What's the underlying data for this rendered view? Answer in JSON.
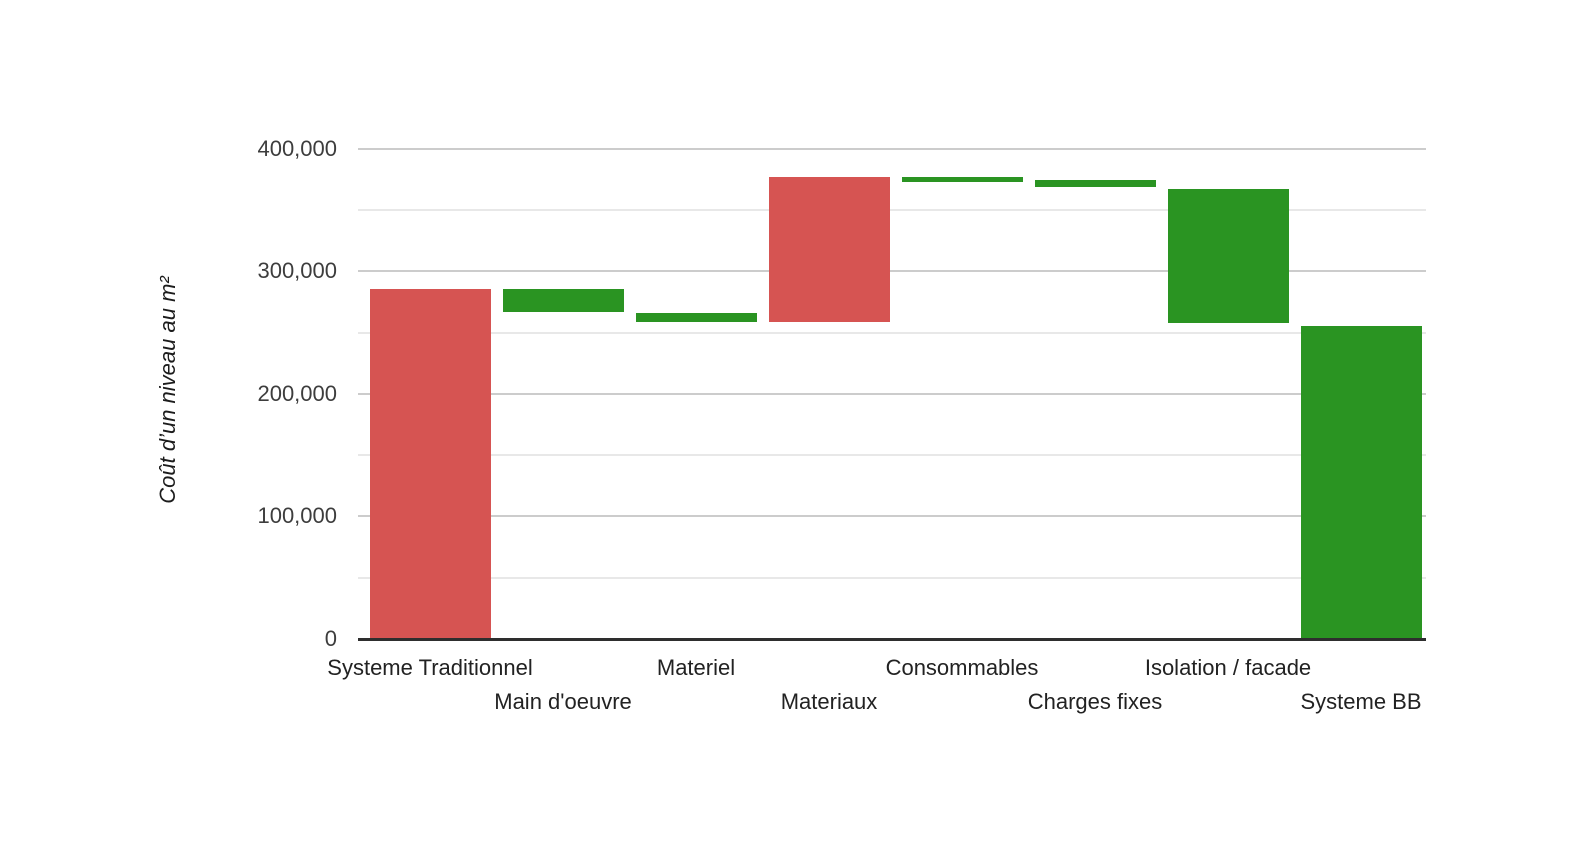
{
  "chart_data": {
    "type": "bar",
    "subtype": "waterfall",
    "title": "",
    "xlabel": "",
    "ylabel": "Coût d’un niveau au m²",
    "ylim": [
      0,
      400000
    ],
    "grid": true,
    "legend_position": "none",
    "categories": [
      "Systeme Traditionnel",
      "Main d'oeuvre",
      "Materiel",
      "Materiaux",
      "Consommables",
      "Charges fixes",
      "Isolation / facade",
      "Systeme BB"
    ],
    "bars": [
      {
        "category": "Systeme Traditionnel",
        "from": 0,
        "to": 285500,
        "color": "#d65452"
      },
      {
        "category": "Main d'oeuvre",
        "from": 285500,
        "to": 267000,
        "color": "#2a9422"
      },
      {
        "category": "Materiel",
        "from": 265500,
        "to": 258500,
        "color": "#2a9422"
      },
      {
        "category": "Materiaux",
        "from": 258500,
        "to": 376500,
        "color": "#d65452"
      },
      {
        "category": "Consommables",
        "from": 376500,
        "to": 372500,
        "color": "#2a9422"
      },
      {
        "category": "Charges fixes",
        "from": 374500,
        "to": 368500,
        "color": "#2a9422"
      },
      {
        "category": "Isolation / facade",
        "from": 367000,
        "to": 257500,
        "color": "#2a9422"
      },
      {
        "category": "Systeme BB",
        "from": 0,
        "to": 255500,
        "color": "#2a9422"
      }
    ],
    "yticks": [
      {
        "value": 0,
        "label": "0"
      },
      {
        "value": 100000,
        "label": "100,000"
      },
      {
        "value": 200000,
        "label": "200,000"
      },
      {
        "value": 300000,
        "label": "300,000"
      },
      {
        "value": 400000,
        "label": "400,000"
      }
    ],
    "minor_gridlines": [
      50000,
      150000,
      250000,
      350000
    ],
    "colors": {
      "increase": "#d65452",
      "decrease": "#2a9422",
      "major_gridline": "#cccccc",
      "minor_gridline": "#e8e8e8",
      "baseline": "#2e2e2e"
    }
  }
}
